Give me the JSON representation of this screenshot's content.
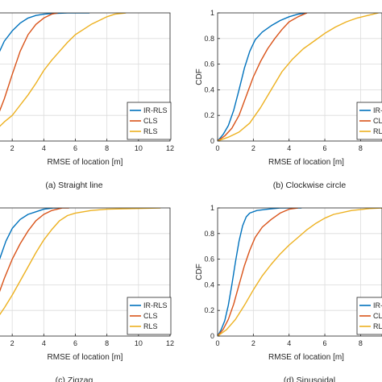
{
  "colors": {
    "IR-RLS": "#0072BD",
    "CLS": "#D95319",
    "RLS": "#EDB120"
  },
  "chart_data": [
    {
      "type": "line",
      "caption": "(a) Straight line",
      "xlabel": "RMSE of location [m]",
      "ylabel": "",
      "xticks": [
        "2",
        "4",
        "6",
        "8",
        "10",
        "12"
      ],
      "yticks": [],
      "xlim": [
        0,
        12
      ],
      "ylim": [
        0,
        1
      ],
      "grid": true,
      "legend": "bottom-right",
      "series": [
        {
          "name": "IR-RLS",
          "points": [
            [
              0,
              0.4
            ],
            [
              0.3,
              0.46
            ],
            [
              0.6,
              0.52
            ],
            [
              0.9,
              0.6
            ],
            [
              1.2,
              0.7
            ],
            [
              1.5,
              0.78
            ],
            [
              2.0,
              0.86
            ],
            [
              2.5,
              0.92
            ],
            [
              3.0,
              0.96
            ],
            [
              3.5,
              0.98
            ],
            [
              4.0,
              0.99
            ],
            [
              4.5,
              0.995
            ],
            [
              5.5,
              1
            ],
            [
              6.9,
              1
            ]
          ]
        },
        {
          "name": "CLS",
          "points": [
            [
              0,
              0.03
            ],
            [
              0.5,
              0.08
            ],
            [
              1.0,
              0.17
            ],
            [
              1.5,
              0.33
            ],
            [
              2.0,
              0.52
            ],
            [
              2.5,
              0.7
            ],
            [
              3.0,
              0.83
            ],
            [
              3.5,
              0.91
            ],
            [
              4.0,
              0.96
            ],
            [
              4.5,
              0.99
            ],
            [
              4.9,
              1
            ]
          ]
        },
        {
          "name": "RLS",
          "points": [
            [
              0,
              0
            ],
            [
              0.5,
              0.04
            ],
            [
              1.0,
              0.09
            ],
            [
              1.5,
              0.15
            ],
            [
              2.0,
              0.2
            ],
            [
              2.5,
              0.28
            ],
            [
              3.0,
              0.36
            ],
            [
              3.5,
              0.45
            ],
            [
              4.0,
              0.55
            ],
            [
              4.5,
              0.63
            ],
            [
              5.0,
              0.7
            ],
            [
              5.5,
              0.77
            ],
            [
              6.0,
              0.83
            ],
            [
              6.5,
              0.87
            ],
            [
              7.0,
              0.91
            ],
            [
              7.5,
              0.94
            ],
            [
              8.0,
              0.97
            ],
            [
              8.5,
              0.99
            ],
            [
              9.2,
              1
            ]
          ]
        }
      ]
    },
    {
      "type": "line",
      "caption": "(b) Clockwise circle",
      "xlabel": "RMSE of location [m]",
      "ylabel": "CDF",
      "xticks": [
        "0",
        "2",
        "4",
        "6",
        "8"
      ],
      "yticks": [
        "0",
        "0.2",
        "0.4",
        "0.6",
        "0.8",
        "1"
      ],
      "xlim": [
        0,
        9.2
      ],
      "ylim": [
        0,
        1
      ],
      "grid": true,
      "legend": "bottom-right",
      "series": [
        {
          "name": "IR-RLS",
          "points": [
            [
              0,
              0
            ],
            [
              0.3,
              0.05
            ],
            [
              0.6,
              0.12
            ],
            [
              0.9,
              0.24
            ],
            [
              1.2,
              0.4
            ],
            [
              1.5,
              0.57
            ],
            [
              1.8,
              0.7
            ],
            [
              2.1,
              0.79
            ],
            [
              2.5,
              0.85
            ],
            [
              3.0,
              0.9
            ],
            [
              3.5,
              0.94
            ],
            [
              4.0,
              0.97
            ],
            [
              4.5,
              0.99
            ],
            [
              5.0,
              1
            ]
          ]
        },
        {
          "name": "CLS",
          "points": [
            [
              0,
              0
            ],
            [
              0.4,
              0.04
            ],
            [
              0.8,
              0.1
            ],
            [
              1.2,
              0.2
            ],
            [
              1.6,
              0.35
            ],
            [
              2.0,
              0.5
            ],
            [
              2.4,
              0.62
            ],
            [
              2.8,
              0.72
            ],
            [
              3.2,
              0.8
            ],
            [
              3.6,
              0.87
            ],
            [
              4.0,
              0.93
            ],
            [
              4.5,
              0.97
            ],
            [
              5.0,
              1
            ]
          ]
        },
        {
          "name": "RLS",
          "points": [
            [
              0,
              0
            ],
            [
              0.6,
              0.03
            ],
            [
              1.2,
              0.07
            ],
            [
              1.8,
              0.14
            ],
            [
              2.4,
              0.26
            ],
            [
              3.0,
              0.4
            ],
            [
              3.6,
              0.54
            ],
            [
              4.2,
              0.64
            ],
            [
              4.8,
              0.72
            ],
            [
              5.4,
              0.78
            ],
            [
              6.0,
              0.84
            ],
            [
              6.6,
              0.89
            ],
            [
              7.2,
              0.93
            ],
            [
              7.8,
              0.96
            ],
            [
              8.4,
              0.98
            ],
            [
              9.0,
              1
            ]
          ]
        }
      ]
    },
    {
      "type": "line",
      "caption": "(c) Zigzag",
      "xlabel": "RMSE of location [m]",
      "ylabel": "",
      "xticks": [
        "2",
        "4",
        "6",
        "8",
        "10",
        "12"
      ],
      "yticks": [],
      "xlim": [
        0,
        12
      ],
      "ylim": [
        0,
        1
      ],
      "grid": true,
      "legend": "bottom-right",
      "series": [
        {
          "name": "IR-RLS",
          "points": [
            [
              0,
              0.05
            ],
            [
              0.4,
              0.2
            ],
            [
              0.8,
              0.42
            ],
            [
              1.2,
              0.6
            ],
            [
              1.6,
              0.74
            ],
            [
              2.0,
              0.84
            ],
            [
              2.5,
              0.91
            ],
            [
              3.0,
              0.95
            ],
            [
              3.5,
              0.97
            ],
            [
              4.0,
              0.99
            ],
            [
              4.6,
              1
            ],
            [
              5.0,
              1
            ]
          ]
        },
        {
          "name": "CLS",
          "points": [
            [
              0,
              0.03
            ],
            [
              0.5,
              0.12
            ],
            [
              1.0,
              0.28
            ],
            [
              1.5,
              0.45
            ],
            [
              2.0,
              0.6
            ],
            [
              2.5,
              0.72
            ],
            [
              3.0,
              0.82
            ],
            [
              3.5,
              0.9
            ],
            [
              4.0,
              0.95
            ],
            [
              4.5,
              0.98
            ],
            [
              5.2,
              1
            ],
            [
              5.6,
              1
            ]
          ]
        },
        {
          "name": "RLS",
          "points": [
            [
              0,
              0
            ],
            [
              0.5,
              0.06
            ],
            [
              1.0,
              0.13
            ],
            [
              1.5,
              0.22
            ],
            [
              2.0,
              0.32
            ],
            [
              2.5,
              0.43
            ],
            [
              3.0,
              0.54
            ],
            [
              3.5,
              0.65
            ],
            [
              4.0,
              0.75
            ],
            [
              4.5,
              0.83
            ],
            [
              5.0,
              0.9
            ],
            [
              5.5,
              0.94
            ],
            [
              6.0,
              0.96
            ],
            [
              7.0,
              0.98
            ],
            [
              8.0,
              0.99
            ],
            [
              11.4,
              1
            ]
          ]
        }
      ]
    },
    {
      "type": "line",
      "caption": "(d) Sinusoidal",
      "xlabel": "RMSE of location [m]",
      "ylabel": "CDF",
      "xticks": [
        "0",
        "2",
        "4",
        "6",
        "8"
      ],
      "yticks": [
        "0",
        "0.2",
        "0.4",
        "0.6",
        "0.8",
        "1"
      ],
      "xlim": [
        0,
        9.2
      ],
      "ylim": [
        0,
        1
      ],
      "grid": true,
      "legend": "bottom-right",
      "series": [
        {
          "name": "IR-RLS",
          "points": [
            [
              0,
              0
            ],
            [
              0.2,
              0.05
            ],
            [
              0.4,
              0.12
            ],
            [
              0.6,
              0.24
            ],
            [
              0.8,
              0.4
            ],
            [
              1.0,
              0.58
            ],
            [
              1.2,
              0.74
            ],
            [
              1.4,
              0.86
            ],
            [
              1.6,
              0.93
            ],
            [
              1.8,
              0.96
            ],
            [
              2.2,
              0.98
            ],
            [
              2.8,
              0.99
            ],
            [
              3.5,
              1
            ],
            [
              4.7,
              1
            ]
          ]
        },
        {
          "name": "CLS",
          "points": [
            [
              0,
              0
            ],
            [
              0.3,
              0.05
            ],
            [
              0.6,
              0.13
            ],
            [
              0.9,
              0.25
            ],
            [
              1.2,
              0.4
            ],
            [
              1.5,
              0.55
            ],
            [
              1.8,
              0.67
            ],
            [
              2.1,
              0.77
            ],
            [
              2.5,
              0.85
            ],
            [
              3.0,
              0.91
            ],
            [
              3.5,
              0.96
            ],
            [
              4.0,
              0.99
            ],
            [
              4.5,
              1
            ]
          ]
        },
        {
          "name": "RLS",
          "points": [
            [
              0,
              0
            ],
            [
              0.5,
              0.05
            ],
            [
              1.0,
              0.13
            ],
            [
              1.5,
              0.24
            ],
            [
              2.0,
              0.36
            ],
            [
              2.5,
              0.47
            ],
            [
              3.0,
              0.56
            ],
            [
              3.5,
              0.64
            ],
            [
              4.0,
              0.71
            ],
            [
              4.5,
              0.77
            ],
            [
              5.0,
              0.83
            ],
            [
              5.5,
              0.88
            ],
            [
              6.0,
              0.92
            ],
            [
              6.5,
              0.95
            ],
            [
              7.5,
              0.98
            ],
            [
              8.5,
              0.995
            ],
            [
              9.2,
              1
            ]
          ]
        }
      ]
    }
  ]
}
